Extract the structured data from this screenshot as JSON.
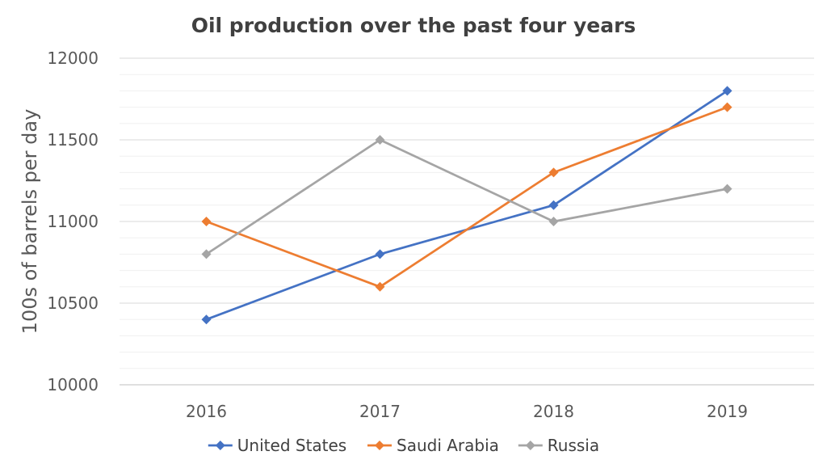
{
  "chart_data": {
    "type": "line",
    "title": "Oil production over the past four years",
    "xlabel": "",
    "ylabel": "100s of barrels per day",
    "categories": [
      "2016",
      "2017",
      "2018",
      "2019"
    ],
    "ylim": [
      10000,
      12000
    ],
    "yticks": [
      10000,
      10500,
      11000,
      11500,
      12000
    ],
    "grid": true,
    "legend_position": "bottom",
    "series": [
      {
        "name": "United States",
        "color": "#4472C4",
        "marker": "diamond",
        "values": [
          10400,
          10800,
          11100,
          11800
        ]
      },
      {
        "name": "Saudi Arabia",
        "color": "#ED7D31",
        "marker": "diamond",
        "values": [
          11000,
          10600,
          11300,
          11700
        ]
      },
      {
        "name": "Russia",
        "color": "#A5A5A5",
        "marker": "diamond",
        "values": [
          10800,
          11500,
          11000,
          11200
        ]
      }
    ]
  }
}
